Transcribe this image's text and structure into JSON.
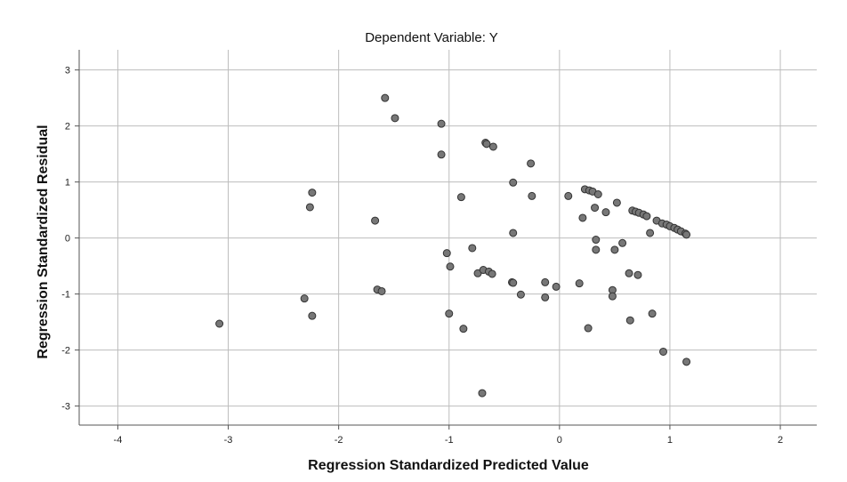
{
  "chart_data": {
    "type": "scatter",
    "title": "Dependent Variable: Y",
    "xlabel": "Regression Standardized Predicted Value",
    "ylabel": "Regression Standardized Residual",
    "xlim": [
      -4.35,
      2.33
    ],
    "ylim": [
      -3.34,
      3.36
    ],
    "x_ticks": [
      -4,
      -3,
      -2,
      -1,
      0,
      1,
      2
    ],
    "y_ticks": [
      -3,
      -2,
      -1,
      0,
      1,
      2,
      3
    ],
    "grid": true,
    "point_color": "#777777",
    "point_edge_color": "#333333",
    "points": [
      {
        "x": -3.08,
        "y": -1.53
      },
      {
        "x": -2.31,
        "y": -1.08
      },
      {
        "x": -2.26,
        "y": 0.55
      },
      {
        "x": -2.24,
        "y": 0.81
      },
      {
        "x": -2.24,
        "y": -1.39
      },
      {
        "x": -1.67,
        "y": 0.31
      },
      {
        "x": -1.65,
        "y": -0.92
      },
      {
        "x": -1.61,
        "y": -0.95
      },
      {
        "x": -1.58,
        "y": 2.5
      },
      {
        "x": -1.49,
        "y": 2.14
      },
      {
        "x": -1.07,
        "y": 2.04
      },
      {
        "x": -1.07,
        "y": 1.49
      },
      {
        "x": -1.02,
        "y": -0.27
      },
      {
        "x": -1.0,
        "y": -1.35
      },
      {
        "x": -0.99,
        "y": -0.51
      },
      {
        "x": -0.89,
        "y": 0.73
      },
      {
        "x": -0.87,
        "y": -1.62
      },
      {
        "x": -0.79,
        "y": -0.18
      },
      {
        "x": -0.74,
        "y": -0.63
      },
      {
        "x": -0.7,
        "y": -2.77
      },
      {
        "x": -0.69,
        "y": -0.57
      },
      {
        "x": -0.67,
        "y": 1.7
      },
      {
        "x": -0.66,
        "y": 1.68
      },
      {
        "x": -0.64,
        "y": -0.6
      },
      {
        "x": -0.61,
        "y": -0.64
      },
      {
        "x": -0.6,
        "y": 1.63
      },
      {
        "x": -0.43,
        "y": -0.79
      },
      {
        "x": -0.42,
        "y": 0.99
      },
      {
        "x": -0.42,
        "y": 0.09
      },
      {
        "x": -0.42,
        "y": -0.8
      },
      {
        "x": -0.35,
        "y": -1.01
      },
      {
        "x": -0.26,
        "y": 1.33
      },
      {
        "x": -0.25,
        "y": 0.75
      },
      {
        "x": -0.13,
        "y": -0.79
      },
      {
        "x": -0.13,
        "y": -1.06
      },
      {
        "x": -0.03,
        "y": -0.87
      },
      {
        "x": 0.08,
        "y": 0.75
      },
      {
        "x": 0.18,
        "y": -0.81
      },
      {
        "x": 0.21,
        "y": 0.36
      },
      {
        "x": 0.23,
        "y": 0.87
      },
      {
        "x": 0.26,
        "y": -1.61
      },
      {
        "x": 0.27,
        "y": 0.85
      },
      {
        "x": 0.3,
        "y": 0.83
      },
      {
        "x": 0.32,
        "y": 0.54
      },
      {
        "x": 0.33,
        "y": -0.03
      },
      {
        "x": 0.33,
        "y": -0.21
      },
      {
        "x": 0.35,
        "y": 0.78
      },
      {
        "x": 0.42,
        "y": 0.46
      },
      {
        "x": 0.48,
        "y": -0.93
      },
      {
        "x": 0.48,
        "y": -1.04
      },
      {
        "x": 0.5,
        "y": -0.21
      },
      {
        "x": 0.52,
        "y": 0.63
      },
      {
        "x": 0.57,
        "y": -0.09
      },
      {
        "x": 0.63,
        "y": -0.63
      },
      {
        "x": 0.64,
        "y": -1.47
      },
      {
        "x": 0.66,
        "y": 0.49
      },
      {
        "x": 0.69,
        "y": 0.47
      },
      {
        "x": 0.71,
        "y": -0.66
      },
      {
        "x": 0.72,
        "y": 0.45
      },
      {
        "x": 0.76,
        "y": 0.42
      },
      {
        "x": 0.79,
        "y": 0.39
      },
      {
        "x": 0.82,
        "y": 0.09
      },
      {
        "x": 0.84,
        "y": -1.35
      },
      {
        "x": 0.88,
        "y": 0.31
      },
      {
        "x": 0.93,
        "y": 0.26
      },
      {
        "x": 0.94,
        "y": -2.03
      },
      {
        "x": 0.97,
        "y": 0.24
      },
      {
        "x": 1.0,
        "y": 0.21
      },
      {
        "x": 1.04,
        "y": 0.18
      },
      {
        "x": 1.07,
        "y": 0.15
      },
      {
        "x": 1.1,
        "y": 0.12
      },
      {
        "x": 1.14,
        "y": 0.08
      },
      {
        "x": 1.15,
        "y": 0.06
      },
      {
        "x": 1.15,
        "y": -2.21
      }
    ]
  }
}
